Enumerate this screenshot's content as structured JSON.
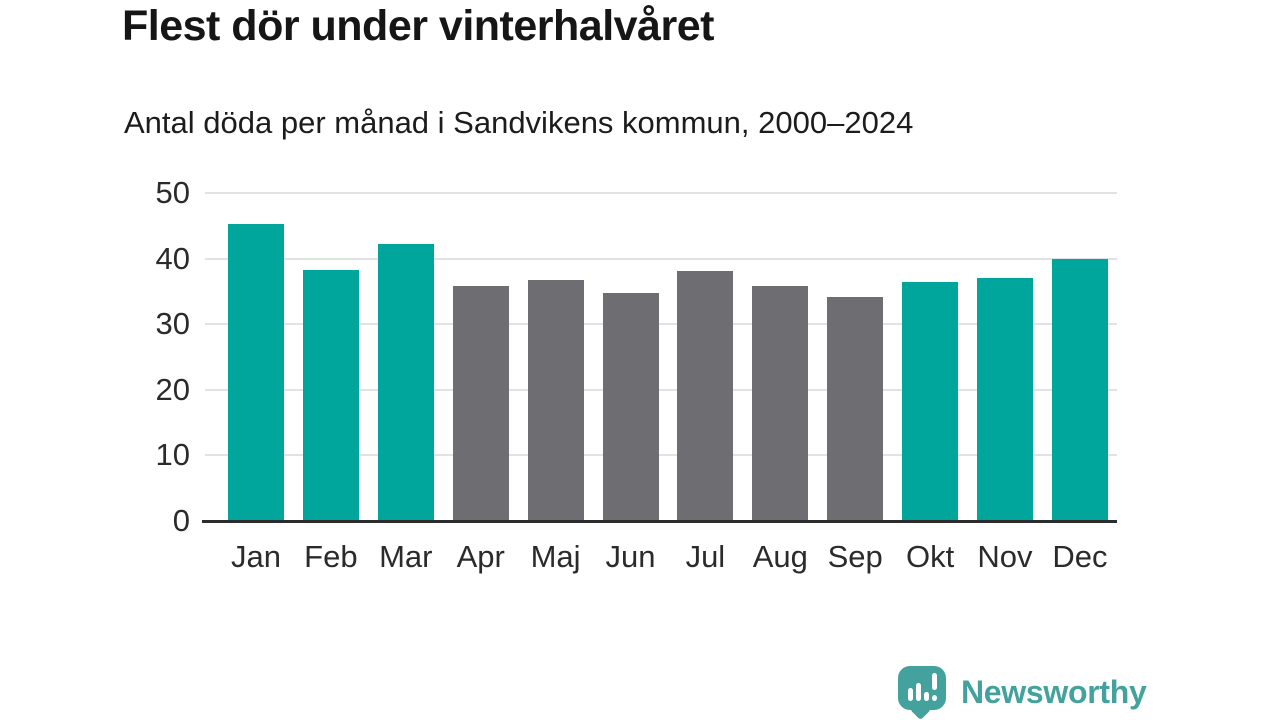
{
  "header": {
    "title": "Flest dör under vinterhalvåret",
    "subtitle": "Antal döda per månad i Sandvikens kommun, 2000–2024"
  },
  "chart_data": {
    "type": "bar",
    "title": "Flest dör under vinterhalvåret",
    "subtitle": "Antal döda per månad i Sandvikens kommun, 2000–2024",
    "categories": [
      "Jan",
      "Feb",
      "Mar",
      "Apr",
      "Maj",
      "Jun",
      "Jul",
      "Aug",
      "Sep",
      "Okt",
      "Nov",
      "Dec"
    ],
    "values": [
      45.3,
      38.2,
      42.2,
      35.9,
      36.8,
      34.8,
      38.1,
      35.9,
      34.2,
      36.5,
      37.0,
      40.0
    ],
    "bar_colors": [
      "#00a59b",
      "#00a59b",
      "#00a59b",
      "#6d6d72",
      "#6d6d72",
      "#6d6d72",
      "#6d6d72",
      "#6d6d72",
      "#6d6d72",
      "#00a59b",
      "#00a59b",
      "#00a59b"
    ],
    "highlighted_categories": [
      "Jan",
      "Feb",
      "Mar",
      "Okt",
      "Nov",
      "Dec"
    ],
    "colors": {
      "highlight": "#00a59b",
      "muted": "#6d6d72"
    },
    "xlabel": "",
    "ylabel": "",
    "ylim": [
      0,
      50
    ],
    "yticks": [
      0,
      10,
      20,
      30,
      40,
      50
    ],
    "grid": true,
    "legend": false
  },
  "footer": {
    "brand": "Newsworthy",
    "brand_color": "#43a29d",
    "logo_icon": "speech-bubble-bar-chart-icon"
  }
}
